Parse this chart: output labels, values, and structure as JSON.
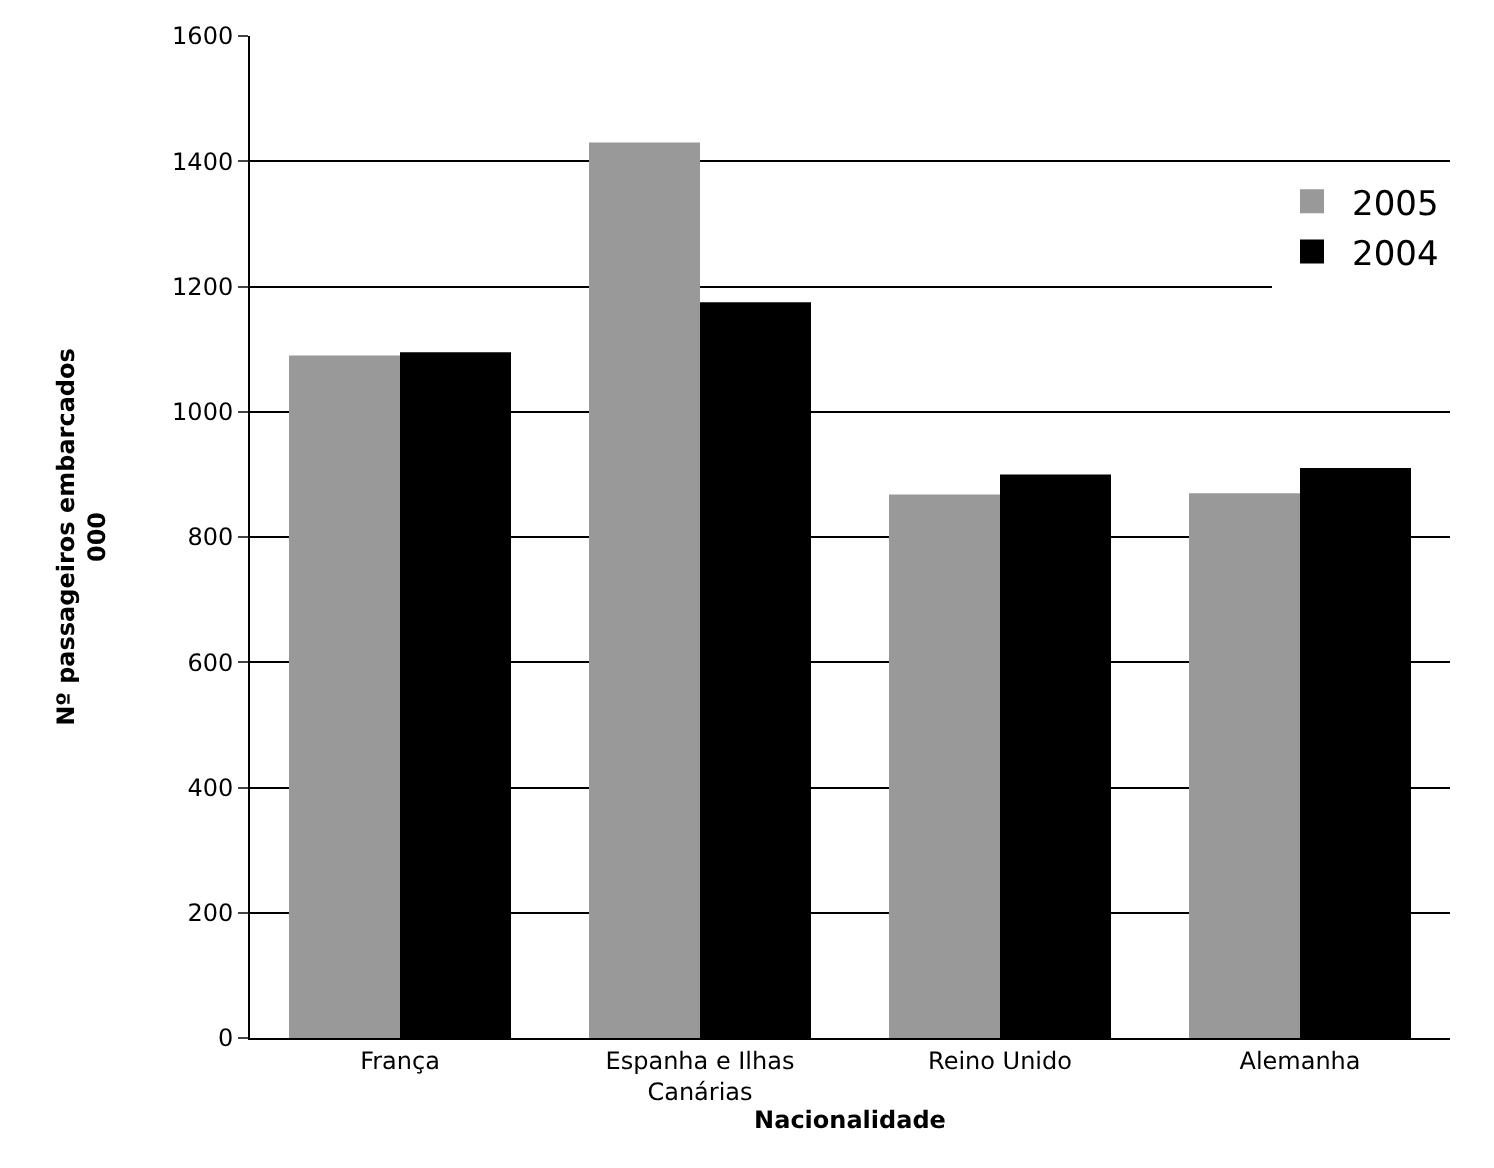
{
  "chart_data": {
    "type": "bar",
    "xlabel": "Nacionalidade",
    "ylabel": "Nº passageiros embarcados\n000",
    "categories": [
      "França",
      "Espanha e Ilhas Canárias",
      "Reino Unido",
      "Alemanha"
    ],
    "series": [
      {
        "name": "2005",
        "color": "#999999",
        "values": [
          1090,
          1430,
          868,
          870
        ]
      },
      {
        "name": "2004",
        "color": "#000000",
        "values": [
          1095,
          1175,
          900,
          910
        ]
      }
    ],
    "ylim": [
      0,
      1600
    ],
    "yticks": [
      0,
      200,
      400,
      600,
      800,
      1000,
      1200,
      1400,
      1600
    ],
    "grid": "y",
    "legend": "top right"
  }
}
